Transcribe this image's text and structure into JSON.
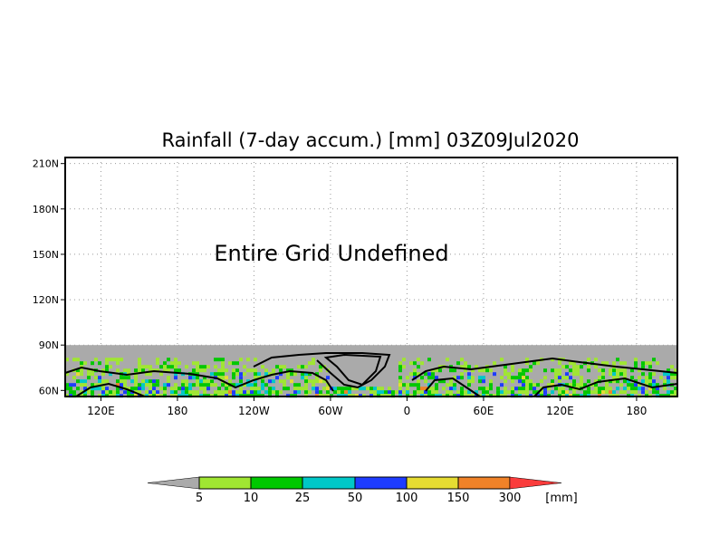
{
  "chart_data": {
    "type": "heatmap",
    "title": "Rainfall (7-day accum.) [mm] 03Z09Jul2020",
    "annotation": "Entire Grid Undefined",
    "xlabel": "",
    "ylabel": "",
    "x_ticks": [
      "120E",
      "180",
      "120W",
      "60W",
      "0",
      "60E",
      "120E",
      "180"
    ],
    "x_tick_values": [
      120,
      180,
      240,
      300,
      360,
      420,
      480,
      540
    ],
    "xlim": [
      92,
      572
    ],
    "y_ticks": [
      "60N",
      "90N",
      "120N",
      "150N",
      "180N",
      "210N"
    ],
    "y_tick_values": [
      60,
      90,
      120,
      150,
      180,
      210
    ],
    "ylim": [
      56,
      214
    ],
    "grid": true,
    "undefined_color": "#aaaaaa",
    "colorbar": {
      "levels": [
        "5",
        "10",
        "25",
        "50",
        "100",
        "150",
        "300"
      ],
      "units": "[mm]",
      "colors": [
        "#aaaaaa",
        "#a0e632",
        "#00c800",
        "#00c8c8",
        "#1e3cff",
        "#e6dc32",
        "#f08228",
        "#fa3c3c"
      ]
    }
  }
}
